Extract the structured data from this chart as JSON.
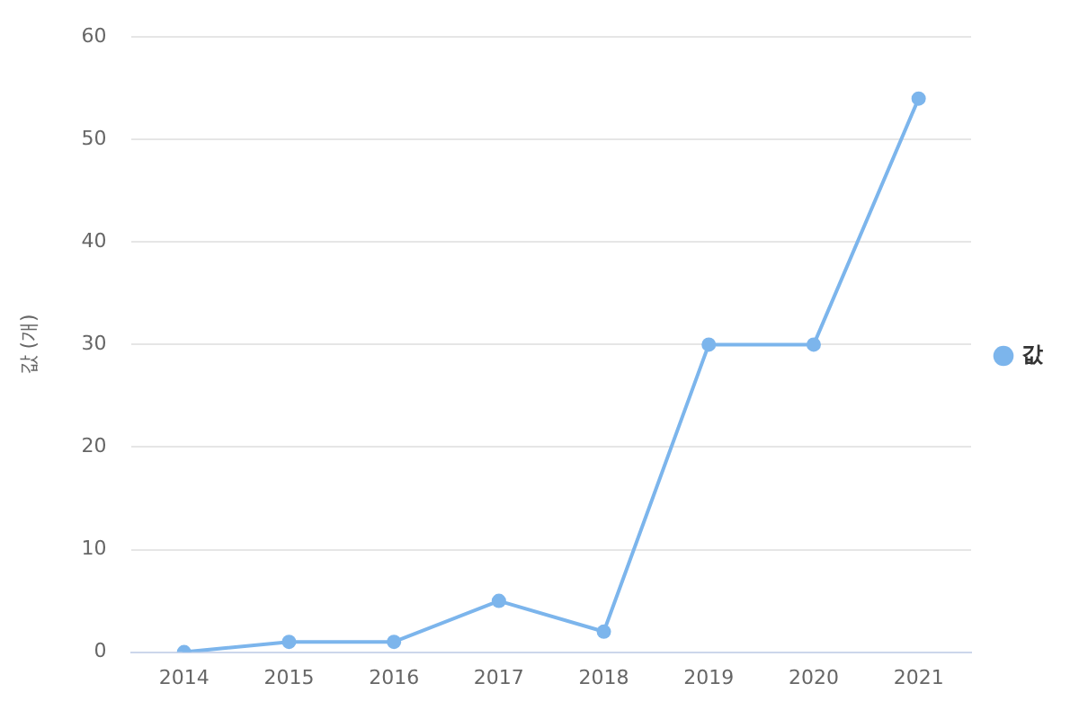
{
  "chart_data": {
    "type": "line",
    "ylabel": "값 (개)",
    "categories": [
      "2014",
      "2015",
      "2016",
      "2017",
      "2018",
      "2019",
      "2020",
      "2021"
    ],
    "series": [
      {
        "name": "값",
        "color": "#7cb5ec",
        "values": [
          0,
          1,
          1,
          5,
          2,
          30,
          30,
          54
        ]
      }
    ],
    "ylim": [
      0,
      60
    ],
    "yticks": [
      0,
      10,
      20,
      30,
      40,
      50,
      60
    ],
    "grid": "y",
    "legend": "right",
    "marker": "circle",
    "line_style": "solid"
  }
}
